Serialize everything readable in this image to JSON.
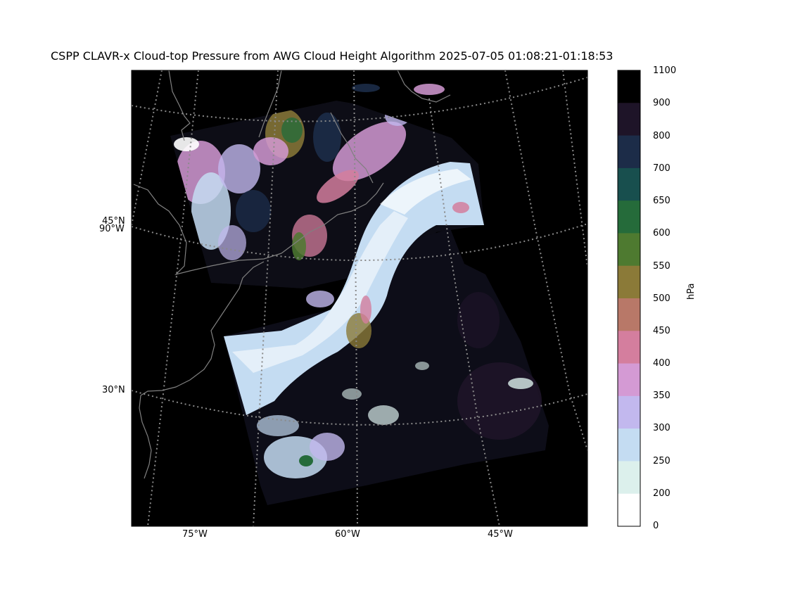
{
  "title": "CSPP CLAVR-x Cloud-top Pressure from AWG Cloud Height Algorithm 2025-07-05 01:08:21-01:18:53",
  "map": {
    "background": "#000000",
    "gridline_color": "#8a8a8a",
    "coastline_color": "#808080",
    "lat_labels": [
      "45°N",
      "30°N"
    ],
    "lon_labels_left": [
      "90°W"
    ],
    "lon_labels_bottom": [
      "75°W",
      "60°W",
      "45°W"
    ]
  },
  "colorbar": {
    "unit": "hPa",
    "ticks": [
      "1100",
      "900",
      "800",
      "700",
      "650",
      "600",
      "550",
      "500",
      "450",
      "400",
      "350",
      "300",
      "250",
      "200",
      "0"
    ],
    "colors": [
      "#000000",
      "#1e1428",
      "#1c2c48",
      "#184f4e",
      "#256b3a",
      "#4e7a30",
      "#8b7a38",
      "#b87868",
      "#d47e9e",
      "#d49ad4",
      "#c2b8ee",
      "#c4dcf2",
      "#dcf0ec",
      "#ffffff"
    ]
  }
}
